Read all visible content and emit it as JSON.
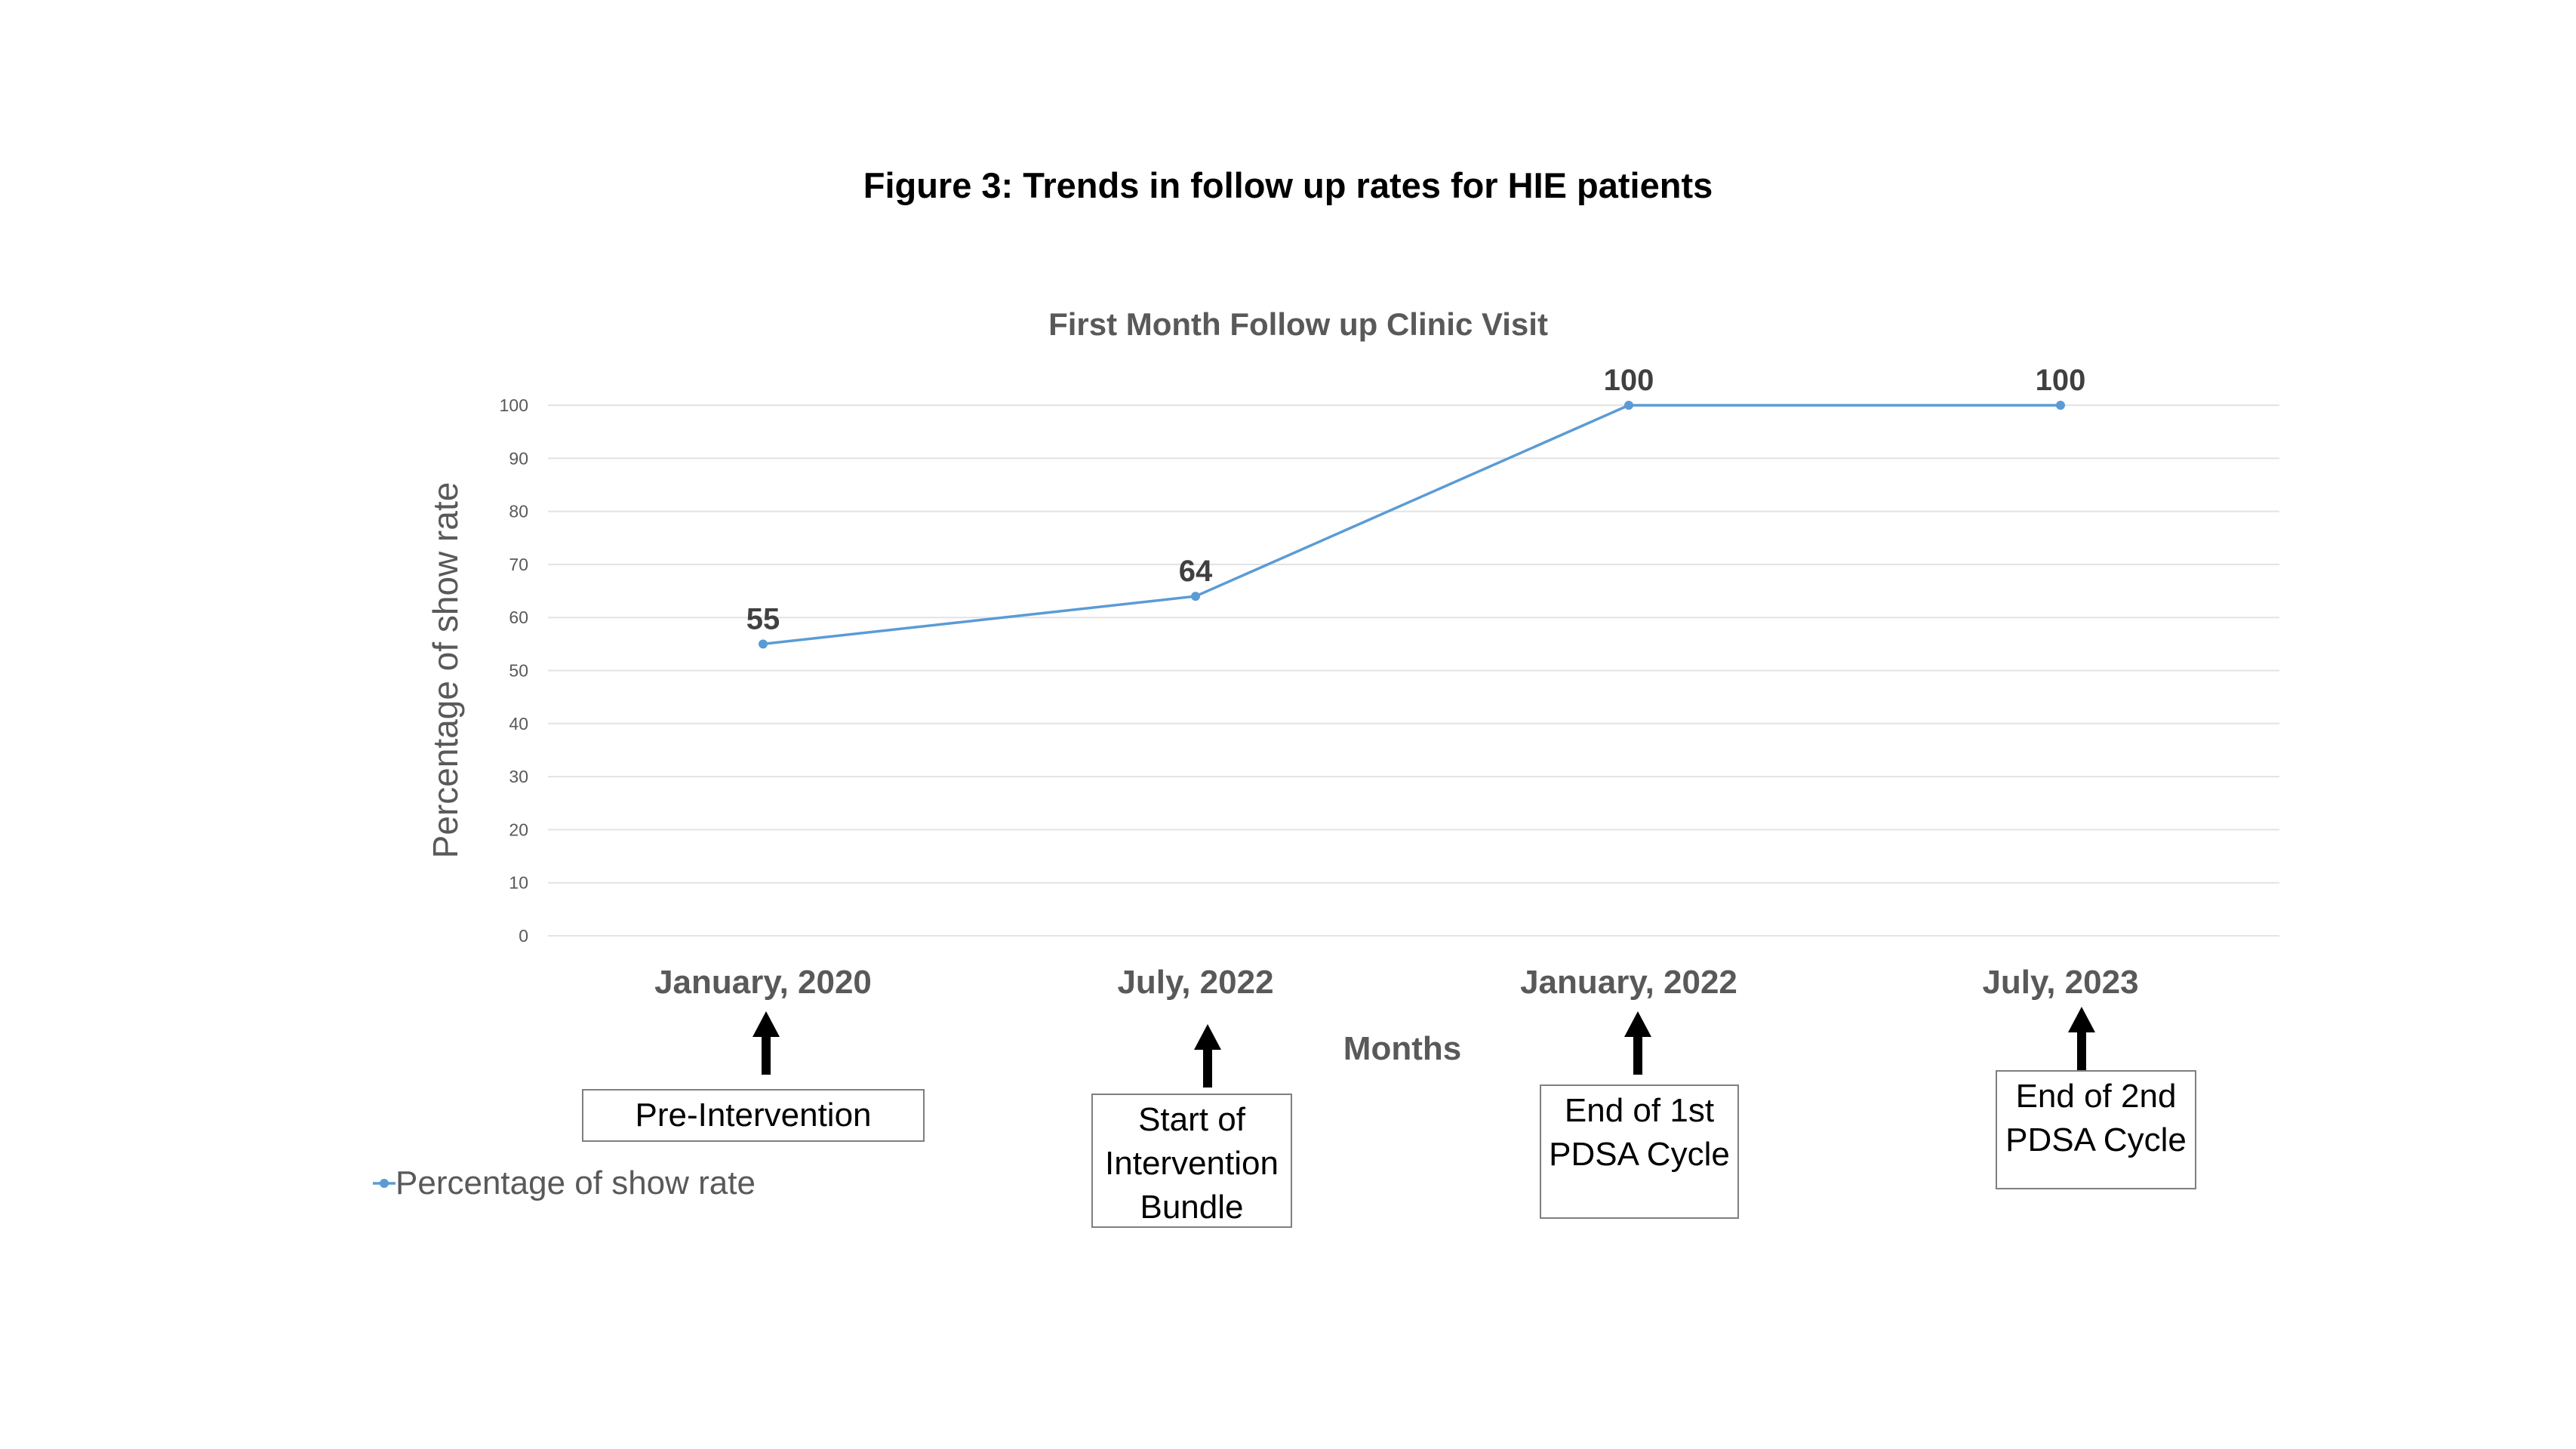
{
  "figure": {
    "title": "Figure 3: Trends in follow up rates for HIE patients"
  },
  "colors": {
    "series": "#5b9bd5",
    "text": "#595959",
    "data_label": "#404040",
    "gridline": "#e3e3e3",
    "box_border": "#7f7f7f",
    "arrow": "#000000"
  },
  "chart_data": {
    "type": "line",
    "title": "First Month Follow up Clinic Visit",
    "xlabel": "Months",
    "ylabel": "Percentage of show rate",
    "categories": [
      "January, 2020",
      "July, 2022",
      "January, 2022",
      "July, 2023"
    ],
    "series": [
      {
        "name": "Percentage of show rate",
        "values": [
          55,
          64,
          100,
          100
        ]
      }
    ],
    "ylim": [
      0,
      100
    ],
    "yticks": [
      0,
      10,
      20,
      30,
      40,
      50,
      60,
      70,
      80,
      90,
      100
    ],
    "grid": true,
    "legend": "bottom-left",
    "data_labels": [
      "55",
      "64",
      "100",
      "100"
    ]
  },
  "annotations": [
    {
      "category_index": 0,
      "lines": [
        "Pre-Intervention"
      ]
    },
    {
      "category_index": 1,
      "lines": [
        "Start of",
        "Intervention",
        "Bundle"
      ]
    },
    {
      "category_index": 2,
      "lines": [
        "End of 1st",
        "PDSA Cycle"
      ]
    },
    {
      "category_index": 3,
      "lines": [
        "End of 2nd",
        "PDSA Cycle"
      ]
    }
  ]
}
